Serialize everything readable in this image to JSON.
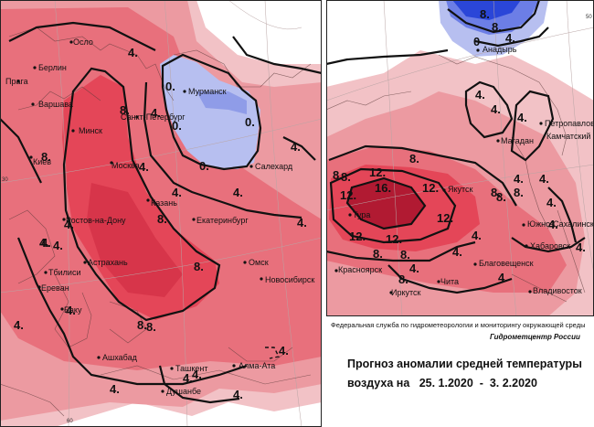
{
  "colors": {
    "light_pink": "#f2c2c6",
    "pink": "#ec9aa1",
    "warm": "#e8707c",
    "red": "#e44658",
    "deep_red": "#b11a32",
    "light_blue": "#b7bff0",
    "blue": "#6c7ee6",
    "deep_blue": "#2a46d8"
  },
  "left_map": {
    "cities": [
      {
        "name": "Осло"
      },
      {
        "name": "Берлин"
      },
      {
        "name": "Прага"
      },
      {
        "name": "Варшава"
      },
      {
        "name": "Мурманск"
      },
      {
        "name": "Санкт-Петербург"
      },
      {
        "name": "Минск"
      },
      {
        "name": "Киев"
      },
      {
        "name": "Москва"
      },
      {
        "name": "Салехард"
      },
      {
        "name": "Казань"
      },
      {
        "name": "Екатеринбург"
      },
      {
        "name": "Ростов-на-Дону"
      },
      {
        "name": "Астрахань"
      },
      {
        "name": "Омск"
      },
      {
        "name": "Новосибирск"
      },
      {
        "name": "Тбилиси"
      },
      {
        "name": "Ереван"
      },
      {
        "name": "Баку"
      },
      {
        "name": "Ашхабад"
      },
      {
        "name": "Ташкент"
      },
      {
        "name": "Алма-Ата"
      },
      {
        "name": "Душанбе"
      }
    ],
    "isotherm_labels": [
      "4.",
      "0.",
      "0.",
      "0.",
      "0.",
      "8.",
      "8.",
      "4.",
      "4.",
      "4.",
      "4.",
      "8.",
      "8.",
      "4.",
      "4.",
      "8.",
      "8.",
      "4.",
      "4.",
      "4.",
      "4.",
      "4.",
      "4.",
      "4.",
      "4.",
      "4.",
      "4.",
      "4."
    ]
  },
  "right_map": {
    "cities": [
      {
        "name": "Анадырь"
      },
      {
        "name": "Петропавловск"
      },
      {
        "name": "Камчатский"
      },
      {
        "name": "Магадан"
      },
      {
        "name": "Якутск"
      },
      {
        "name": "Тура"
      },
      {
        "name": "Южно-Сахалинск"
      },
      {
        "name": "Хабаровск"
      },
      {
        "name": "Благовещенск"
      },
      {
        "name": "Красноярск"
      },
      {
        "name": "Иркутск"
      },
      {
        "name": "Чита"
      },
      {
        "name": "Владивосток"
      }
    ],
    "isotherm_labels": [
      "8.",
      "8.",
      "4.",
      "0",
      "4.",
      "4.",
      "4.",
      "4.",
      "4.",
      "4.",
      "8.",
      "12.",
      "8.",
      "8.",
      "16.",
      "12.",
      "12.",
      "12.",
      "12.",
      "12.",
      "8.",
      "8.",
      "8.",
      "4.",
      "4.",
      "4.",
      "4.",
      "8.",
      "8.",
      "8.",
      "4.",
      "4."
    ]
  },
  "caption": {
    "agency": "Федеральная служба по гидрометеорологии и мониторингу окружающей среды",
    "center": "Гидрометцентр России",
    "title_line1": "Прогноз аномалии средней температуры",
    "title_line2": "воздуха на   25. 1.2020  -  3. 2.2020"
  },
  "edge_ticks": [
    "30",
    "60",
    "50"
  ]
}
